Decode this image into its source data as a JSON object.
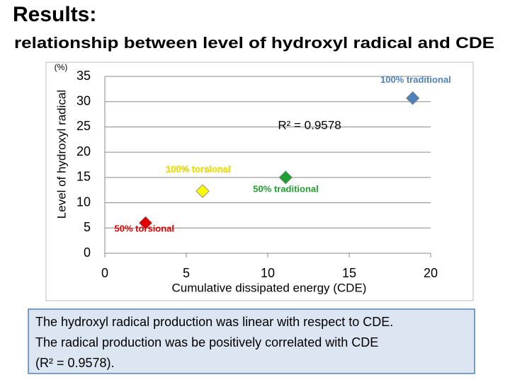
{
  "slide": {
    "title": "Results:",
    "subtitle": "relationship between level of hydroxyl radical and CDE",
    "note_lines": [
      "The hydroxyl radical production was linear with respect to CDE.",
      "The radical production was be positively correlated with CDE",
      "(R² = 0.9578)."
    ]
  },
  "chart_data": {
    "type": "scatter",
    "x": [
      2.5,
      6,
      11.1,
      18.9
    ],
    "values": [
      6,
      12.3,
      15,
      30.7
    ],
    "point_labels": [
      "50% torsional",
      "100% torsional",
      "50% traditional",
      "100% traditional"
    ],
    "colors": [
      "#e00000",
      "#ffff00",
      "#20a030",
      "#4f81bd"
    ],
    "xlim": [
      0,
      20
    ],
    "xticks": [
      0,
      5,
      10,
      15,
      20
    ],
    "ylim": [
      0,
      35
    ],
    "yticks": [
      0,
      5,
      10,
      15,
      20,
      25,
      30,
      35
    ],
    "x_label": "Cumulative dissipated energy (CDE)",
    "y_label": "Level of hydroxyl radical",
    "y_unit": "(%)",
    "annotation": "R² = 0.9578",
    "grid": true
  }
}
